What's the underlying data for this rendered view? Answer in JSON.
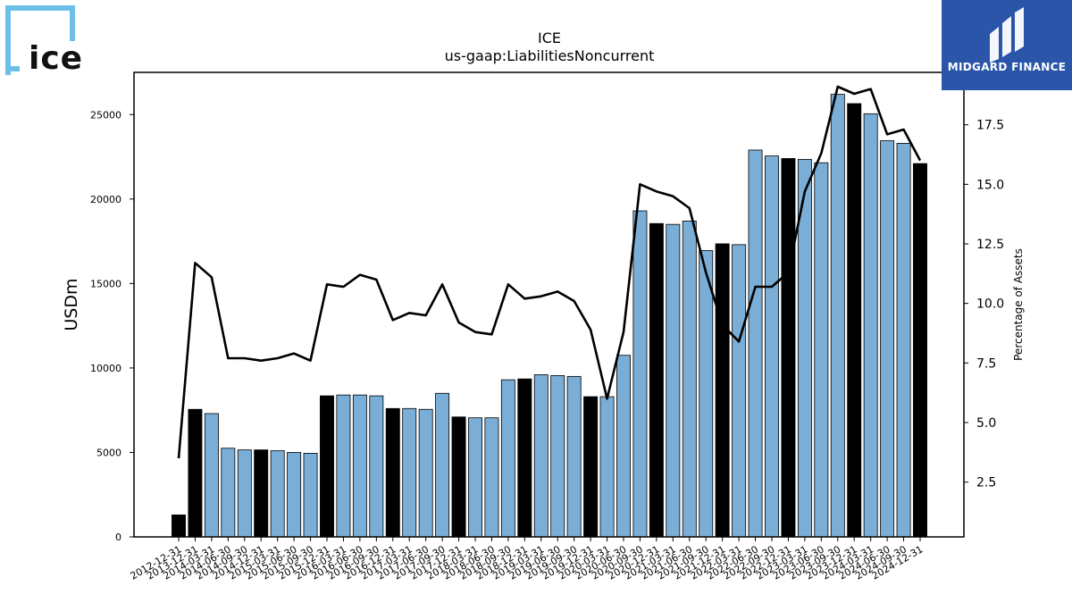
{
  "logo": {
    "text": "ice",
    "accent_color": "#6cc0e8"
  },
  "brand": {
    "name": "MIDGARD FINANCE",
    "color": "#2a55a8"
  },
  "chart_data": {
    "type": "bar",
    "title": "ICE",
    "subtitle": "us-gaap:LiabilitiesNoncurrent",
    "ylabel": "USDm",
    "y2label": "Percentage of Assets",
    "ylim": [
      0,
      27500
    ],
    "y2lim": [
      0.2,
      19.7
    ],
    "yticks": [
      0,
      5000,
      10000,
      15000,
      20000,
      25000
    ],
    "y2ticks": [
      2.5,
      5.0,
      7.5,
      10.0,
      12.5,
      15.0,
      17.5
    ],
    "y2tick_labels": [
      "2.5",
      "5.0",
      "7.5",
      "10.0",
      "12.5",
      "15.0",
      "17.5"
    ],
    "grid": false,
    "bar_colors": {
      "year_end": "#000000",
      "quarter": "#7aaed6"
    },
    "line_color": "#000000",
    "categories": [
      "2012-12-31",
      "2013-12-31",
      "2014-03-31",
      "2014-06-30",
      "2014-09-30",
      "2014-12-31",
      "2015-03-31",
      "2015-06-30",
      "2015-09-30",
      "2015-12-31",
      "2016-03-31",
      "2016-06-30",
      "2016-09-30",
      "2016-12-31",
      "2017-03-31",
      "2017-06-30",
      "2017-09-30",
      "2017-12-31",
      "2018-03-31",
      "2018-06-30",
      "2018-09-30",
      "2018-12-31",
      "2019-03-31",
      "2019-06-30",
      "2019-09-30",
      "2019-12-31",
      "2020-03-31",
      "2020-06-30",
      "2020-09-30",
      "2020-12-31",
      "2021-03-31",
      "2021-06-30",
      "2021-09-30",
      "2021-12-31",
      "2022-03-31",
      "2022-06-30",
      "2022-09-30",
      "2022-12-31",
      "2023-03-31",
      "2023-06-30",
      "2023-09-30",
      "2023-12-31",
      "2024-03-31",
      "2024-06-30",
      "2024-09-30",
      "2024-12-31"
    ],
    "series": [
      {
        "kind": "bar",
        "values": [
          1300,
          7550,
          7300,
          5250,
          5150,
          5150,
          5100,
          5000,
          4950,
          8350,
          8400,
          8400,
          8350,
          7600,
          7600,
          7550,
          8500,
          7100,
          7050,
          7050,
          9300,
          9350,
          9600,
          9550,
          9500,
          8300,
          8300,
          10750,
          19300,
          18550,
          18500,
          18700,
          16950,
          17350,
          17300,
          22900,
          22550,
          22400,
          22350,
          22150,
          26200,
          25650,
          25050,
          23450,
          23300,
          22100
        ]
      },
      {
        "kind": "line",
        "axis": "right",
        "values": [
          3.5,
          11.7,
          11.1,
          7.7,
          7.7,
          7.6,
          7.7,
          7.9,
          7.6,
          10.8,
          10.7,
          11.2,
          11.0,
          9.3,
          9.6,
          9.5,
          10.8,
          9.2,
          8.8,
          8.7,
          10.8,
          10.2,
          10.3,
          10.5,
          10.1,
          8.9,
          6.0,
          8.8,
          15.0,
          14.7,
          14.5,
          14.0,
          11.3,
          9.1,
          8.4,
          10.7,
          10.7,
          11.3,
          14.7,
          16.3,
          19.1,
          18.8,
          19.0,
          17.1,
          17.3,
          16.0
        ]
      }
    ]
  }
}
